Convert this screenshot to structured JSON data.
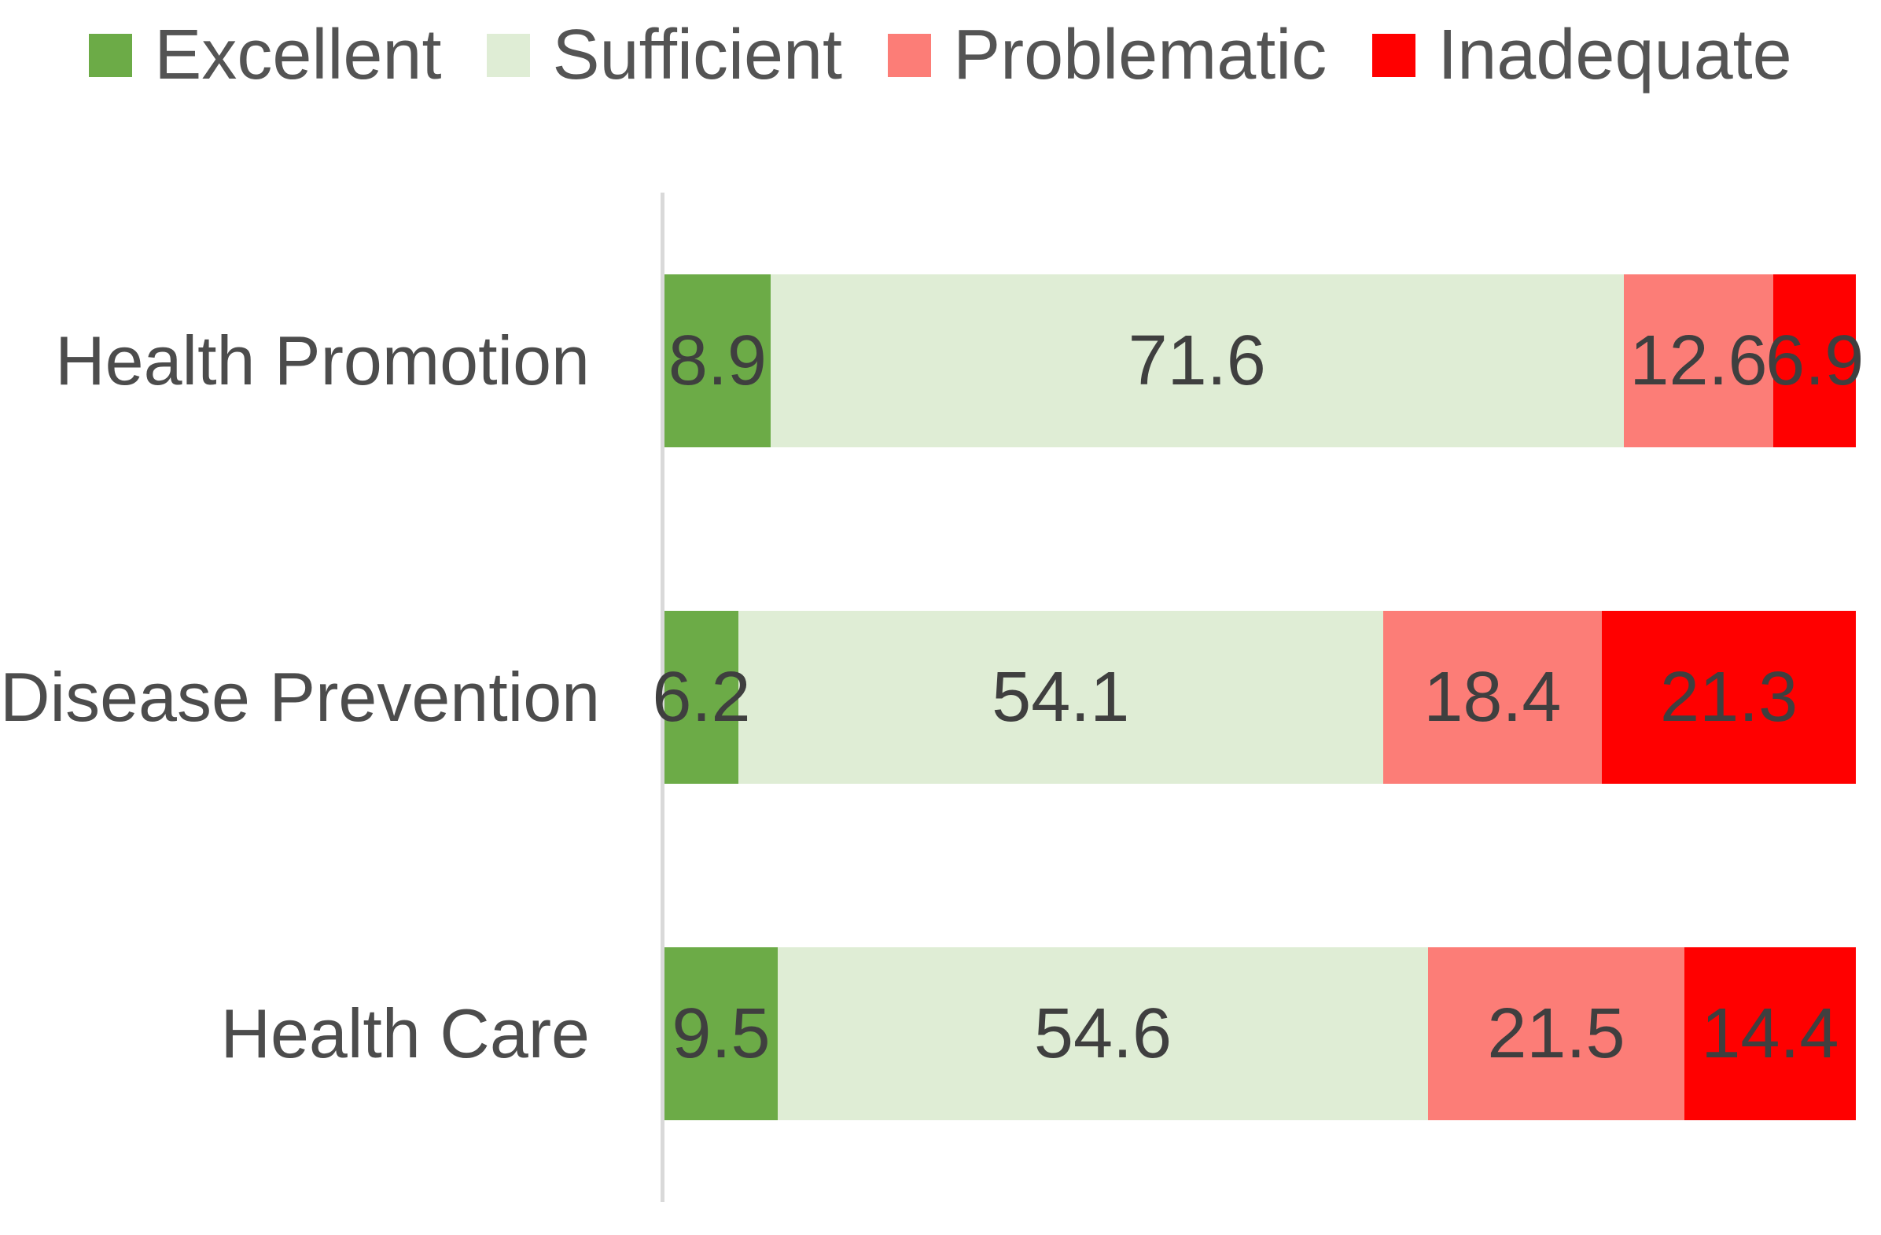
{
  "chart_data": {
    "type": "bar",
    "variant": "horizontal-stacked-100pct",
    "title": "",
    "xlabel": "",
    "ylabel": "",
    "xlim": [
      0,
      100
    ],
    "grid": false,
    "legend_position": "top",
    "categories": [
      "Health Promotion",
      "Disease Prevention",
      "Health Care"
    ],
    "series": [
      {
        "name": "Excellent",
        "color": "#6CAB47",
        "values": [
          8.9,
          6.2,
          9.5
        ]
      },
      {
        "name": "Sufficient",
        "color": "#DFEDD5",
        "values": [
          71.6,
          54.1,
          54.6
        ]
      },
      {
        "name": "Problematic",
        "color": "#FC7D77",
        "values": [
          12.6,
          18.4,
          21.5
        ]
      },
      {
        "name": "Inadequate",
        "color": "#FF0000",
        "values": [
          6.9,
          21.3,
          14.4
        ]
      }
    ],
    "data_labels_decimals": 1
  },
  "colors": {
    "background": "#FFFFFF",
    "axis_line": "#D9D9D9",
    "value_label_text": "#3F3F3F",
    "category_label_text": "#4C4C4C",
    "legend_text": "#545454"
  }
}
